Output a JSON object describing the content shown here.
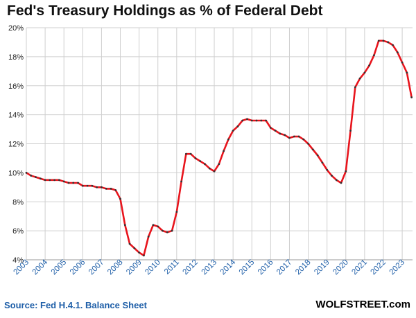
{
  "chart_data": {
    "type": "line",
    "title": "Fed's Treasury Holdings as % of Federal Debt",
    "xlabel": "",
    "ylabel": "",
    "ylim": [
      4,
      20
    ],
    "xlim": [
      2003.0,
      2023.55
    ],
    "y_ticks": [
      4,
      6,
      8,
      10,
      12,
      14,
      16,
      18,
      20
    ],
    "y_tick_suffix": "%",
    "x_ticks": [
      "2003",
      "2004",
      "2005",
      "2006",
      "2007",
      "2008",
      "2009",
      "2010",
      "2011",
      "2012",
      "2013",
      "2014",
      "2015",
      "2016",
      "2017",
      "2018",
      "2019",
      "2020",
      "2021",
      "2022",
      "2023"
    ],
    "grid": true,
    "legend": "none",
    "series": [
      {
        "color": "#e8141c",
        "marker_color": "#333333",
        "x": [
          2003.0,
          2003.25,
          2003.5,
          2003.75,
          2004.0,
          2004.25,
          2004.5,
          2004.75,
          2005.0,
          2005.25,
          2005.5,
          2005.75,
          2006.0,
          2006.25,
          2006.5,
          2006.75,
          2007.0,
          2007.25,
          2007.5,
          2007.75,
          2008.0,
          2008.25,
          2008.5,
          2008.75,
          2009.0,
          2009.25,
          2009.5,
          2009.75,
          2010.0,
          2010.25,
          2010.5,
          2010.75,
          2011.0,
          2011.25,
          2011.5,
          2011.75,
          2012.0,
          2012.25,
          2012.5,
          2012.75,
          2013.0,
          2013.25,
          2013.5,
          2013.75,
          2014.0,
          2014.25,
          2014.5,
          2014.75,
          2015.0,
          2015.25,
          2015.5,
          2015.75,
          2016.0,
          2016.25,
          2016.5,
          2016.75,
          2017.0,
          2017.25,
          2017.5,
          2017.75,
          2018.0,
          2018.25,
          2018.5,
          2018.75,
          2019.0,
          2019.25,
          2019.5,
          2019.75,
          2020.0,
          2020.25,
          2020.5,
          2020.75,
          2021.0,
          2021.25,
          2021.5,
          2021.75,
          2022.0,
          2022.25,
          2022.5,
          2022.75,
          2023.0,
          2023.25,
          2023.5
        ],
        "y": [
          10.0,
          9.8,
          9.7,
          9.6,
          9.5,
          9.5,
          9.5,
          9.5,
          9.4,
          9.3,
          9.3,
          9.3,
          9.1,
          9.1,
          9.1,
          9.0,
          9.0,
          8.9,
          8.9,
          8.8,
          8.2,
          6.4,
          5.1,
          4.8,
          4.5,
          4.3,
          5.6,
          6.4,
          6.3,
          6.0,
          5.9,
          6.0,
          7.3,
          9.4,
          11.3,
          11.3,
          11.0,
          10.8,
          10.6,
          10.3,
          10.1,
          10.6,
          11.5,
          12.3,
          12.9,
          13.2,
          13.6,
          13.7,
          13.6,
          13.6,
          13.6,
          13.6,
          13.1,
          12.9,
          12.7,
          12.6,
          12.4,
          12.5,
          12.5,
          12.3,
          12.0,
          11.6,
          11.2,
          10.7,
          10.2,
          9.8,
          9.5,
          9.3,
          10.1,
          12.9,
          15.9,
          16.5,
          16.9,
          17.4,
          18.1,
          19.1,
          19.1,
          19.0,
          18.8,
          18.3,
          17.6,
          16.9,
          15.2
        ]
      }
    ]
  },
  "footer": {
    "source": "Source: Fed H.4.1. Balance Sheet",
    "brand": "WOLFSTREET.com"
  }
}
